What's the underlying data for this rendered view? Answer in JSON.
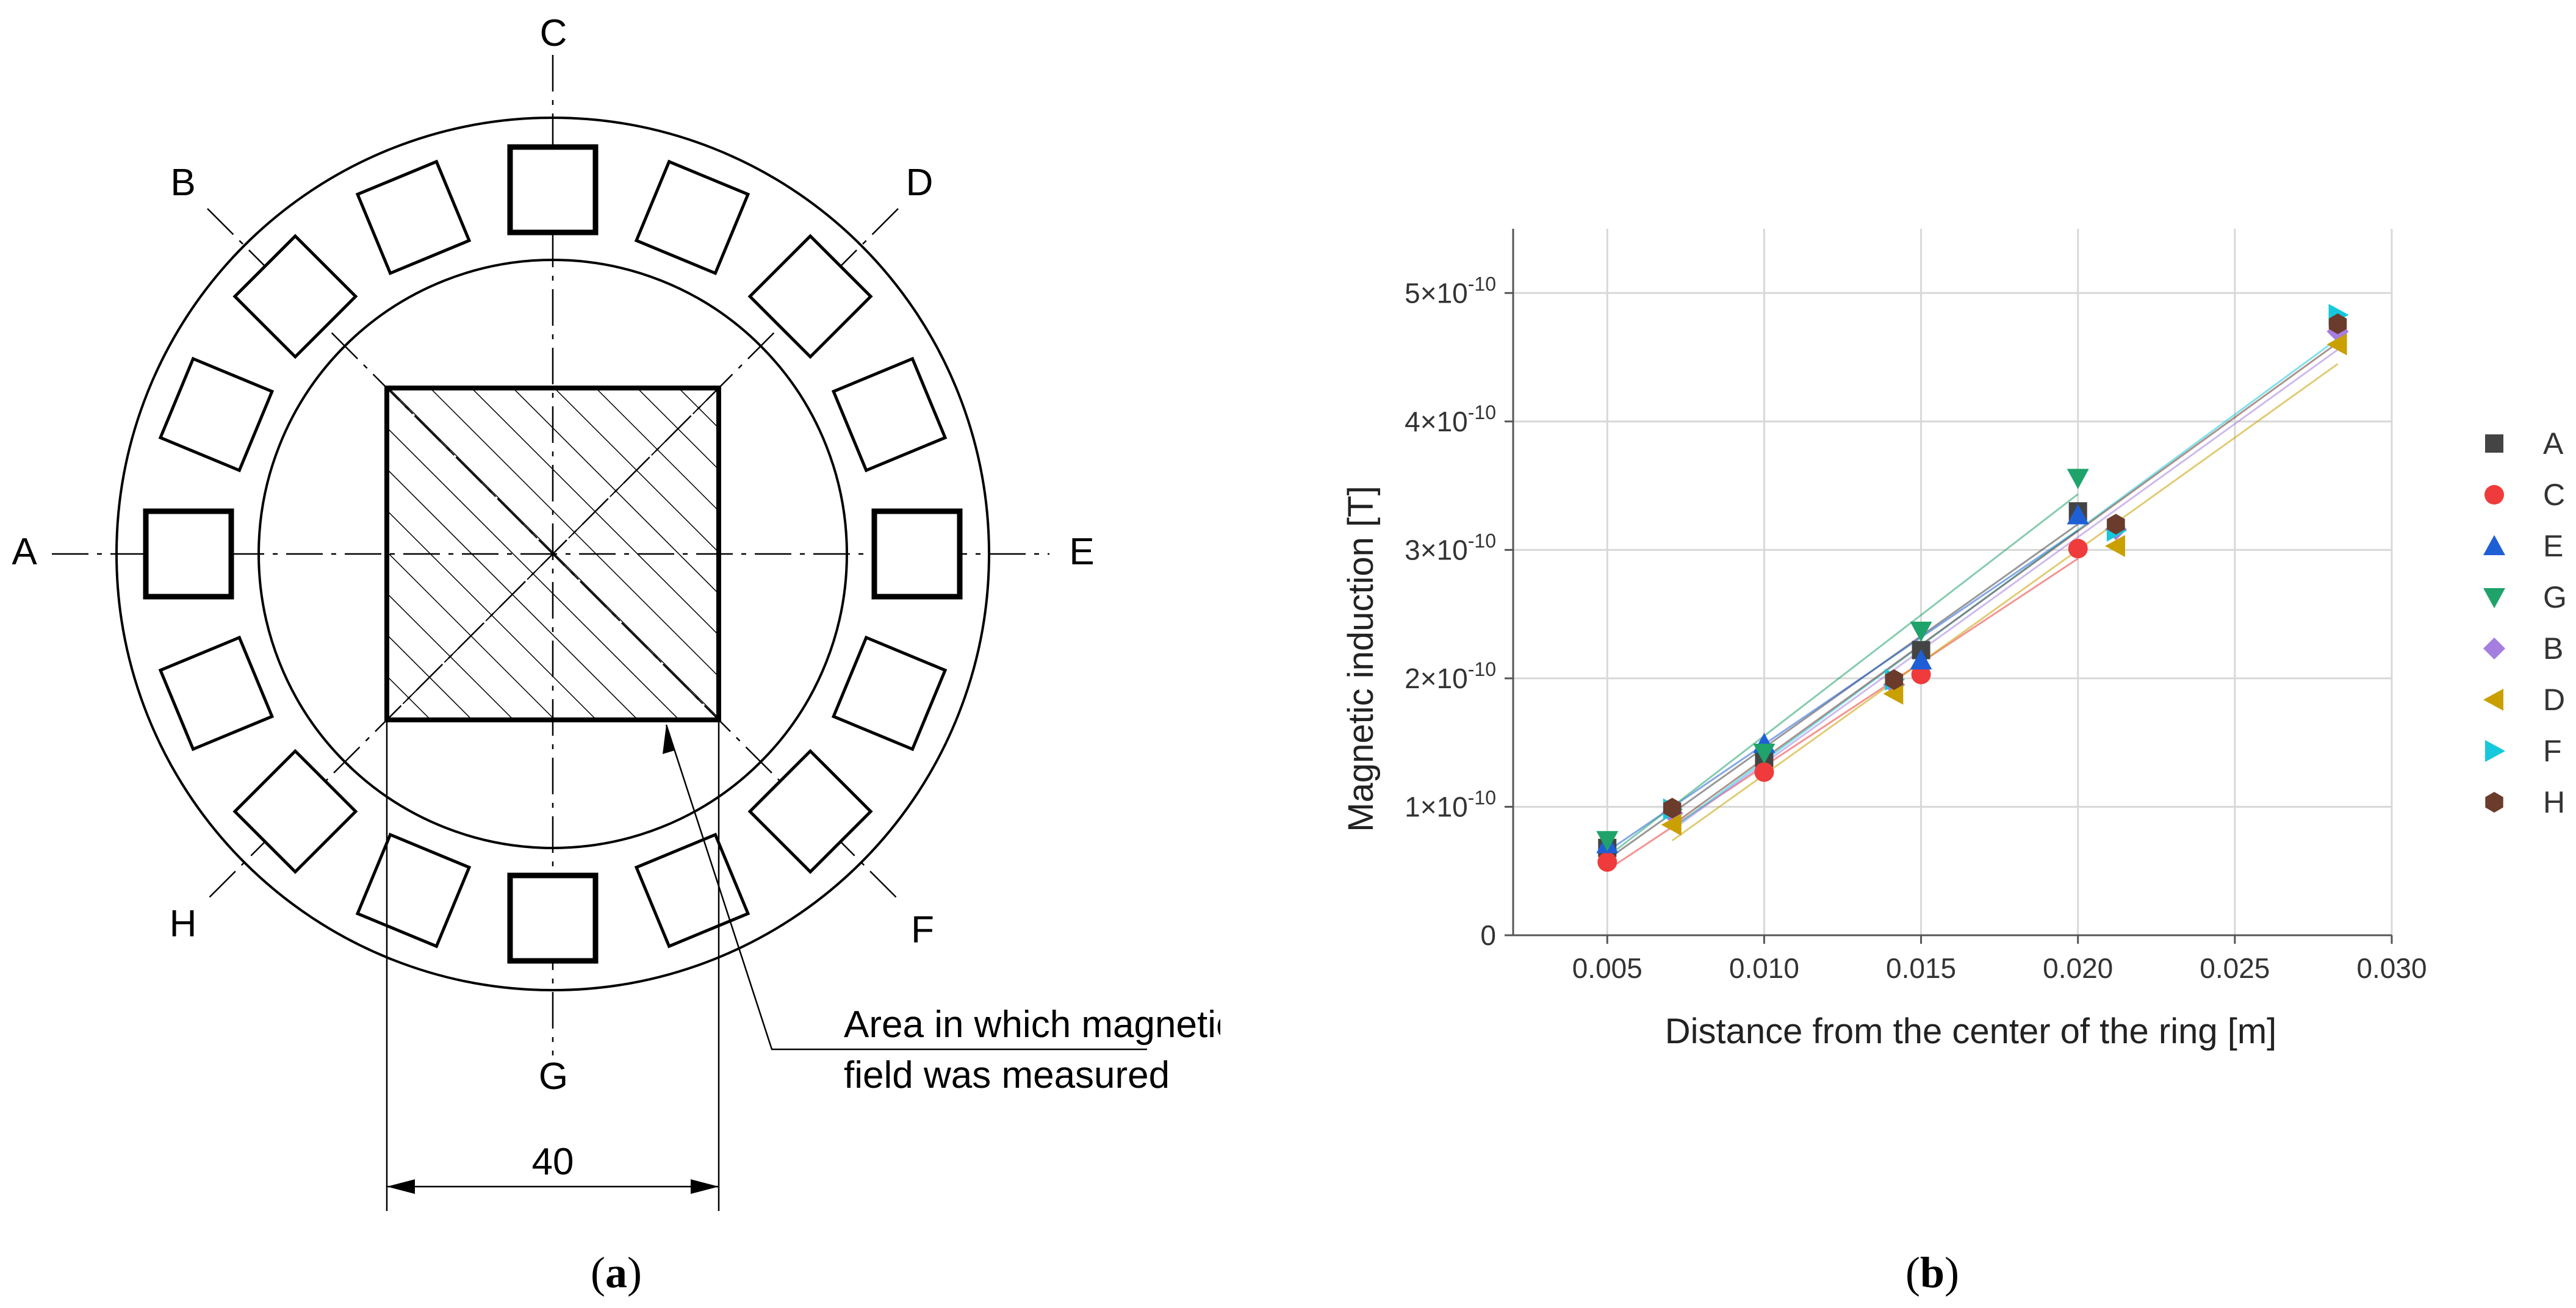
{
  "panel_a": {
    "caption_open": "(",
    "caption_letter": "a",
    "caption_close": ")",
    "axis_labels": [
      "A",
      "B",
      "C",
      "D",
      "E",
      "F",
      "G",
      "H"
    ],
    "dimension": "40",
    "callout_line1": "Area in which magnetic",
    "callout_line2": "field was measured"
  },
  "panel_b": {
    "caption_open": "(",
    "caption_letter": "b",
    "caption_close": ")"
  },
  "chart_data": {
    "type": "scatter",
    "title": "",
    "xlabel": "Distance from the center of the ring [m]",
    "ylabel": "Magnetic induction [T]",
    "xlim": [
      0.002,
      0.03
    ],
    "ylim": [
      0,
      5.5e-10
    ],
    "xticks": [
      0.005,
      0.01,
      0.015,
      0.02,
      0.025,
      0.03
    ],
    "xtick_labels": [
      "0.005",
      "0.010",
      "0.015",
      "0.020",
      "0.025",
      "0.030"
    ],
    "yticks": [
      0,
      1e-10,
      2e-10,
      3e-10,
      4e-10,
      5e-10
    ],
    "ytick_mantissa": [
      "0",
      "1×10",
      "2×10",
      "3×10",
      "4×10",
      "5×10"
    ],
    "ytick_exponent": [
      "",
      "-10",
      "-10",
      "-10",
      "-10",
      "-10"
    ],
    "grid": true,
    "legend_position": "right",
    "fit_lines": true,
    "series": [
      {
        "name": "A",
        "color": "#444444",
        "marker": "square",
        "x": [
          0.005,
          0.01,
          0.015,
          0.02
        ],
        "y": [
          6.8e-11,
          1.38e-10,
          2.22e-10,
          3.3e-10
        ]
      },
      {
        "name": "C",
        "color": "#ef3b3b",
        "marker": "circle",
        "x": [
          0.005,
          0.01,
          0.015,
          0.02
        ],
        "y": [
          5.7e-11,
          1.27e-10,
          2.03e-10,
          3.01e-10
        ]
      },
      {
        "name": "E",
        "color": "#1f5fd6",
        "marker": "triangle-up",
        "x": [
          0.005,
          0.01,
          0.015,
          0.02
        ],
        "y": [
          7.1e-11,
          1.49e-10,
          2.14e-10,
          3.27e-10
        ]
      },
      {
        "name": "G",
        "color": "#1fa36a",
        "marker": "triangle-down",
        "x": [
          0.005,
          0.01,
          0.015,
          0.02
        ],
        "y": [
          7.4e-11,
          1.42e-10,
          2.37e-10,
          3.56e-10
        ]
      },
      {
        "name": "B",
        "color": "#a57fe0",
        "marker": "diamond",
        "x": [
          0.00707,
          0.01414,
          0.02121,
          0.02828
        ],
        "y": [
          9.5e-11,
          1.95e-10,
          3.16e-10,
          4.7e-10
        ]
      },
      {
        "name": "D",
        "color": "#c9a000",
        "marker": "triangle-left",
        "x": [
          0.00707,
          0.01414,
          0.02121,
          0.02828
        ],
        "y": [
          8.6e-11,
          1.88e-10,
          3.03e-10,
          4.6e-10
        ]
      },
      {
        "name": "F",
        "color": "#16c8dc",
        "marker": "triangle-right",
        "x": [
          0.00707,
          0.01414,
          0.02121,
          0.02828
        ],
        "y": [
          9.8e-11,
          1.99e-10,
          3.15e-10,
          4.83e-10
        ]
      },
      {
        "name": "H",
        "color": "#6b3b2b",
        "marker": "hexagon",
        "x": [
          0.00707,
          0.01414,
          0.02121,
          0.02828
        ],
        "y": [
          9.9e-11,
          1.99e-10,
          3.2e-10,
          4.76e-10
        ]
      }
    ]
  }
}
